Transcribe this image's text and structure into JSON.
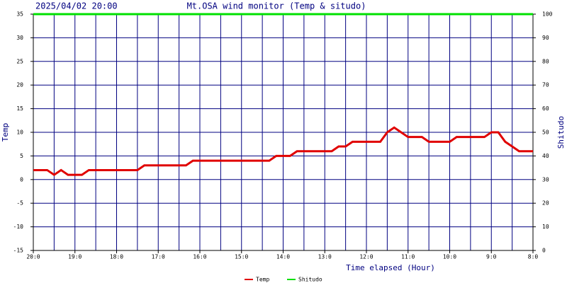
{
  "chart_data": {
    "type": "line",
    "title": "Mt.OSA wind monitor (Temp & situdo)",
    "subtitle": "2025/04/02 20:00",
    "x_label": "Time elapsed (Hour)",
    "y_label": "Temp",
    "y2_label": "Shitudo",
    "categories": [
      "20:0",
      null,
      null,
      null,
      null,
      null,
      "19:0",
      null,
      null,
      null,
      null,
      null,
      "18:0",
      null,
      null,
      null,
      null,
      null,
      "17:0",
      null,
      null,
      null,
      null,
      null,
      "16:0",
      null,
      null,
      null,
      null,
      null,
      "15:0",
      null,
      null,
      null,
      null,
      null,
      "14:0",
      null,
      null,
      null,
      null,
      null,
      "13:0",
      null,
      null,
      null,
      null,
      null,
      "12:0",
      null,
      null,
      null,
      null,
      null,
      "11:0",
      null,
      null,
      null,
      null,
      null,
      "10:0",
      null,
      null,
      null,
      null,
      null,
      "9:0",
      null,
      null,
      null,
      null,
      null,
      "8:0"
    ],
    "series": [
      {
        "name": "Temp",
        "color": "#e00000",
        "axis": "y",
        "values": [
          2,
          2,
          2,
          1,
          2,
          1,
          1,
          1,
          2,
          2,
          2,
          2,
          2,
          2,
          2,
          2,
          3,
          3,
          3,
          3,
          3,
          3,
          3,
          4,
          4,
          4,
          4,
          4,
          4,
          4,
          4,
          4,
          4,
          4,
          4,
          5,
          5,
          5,
          6,
          6,
          6,
          6,
          6,
          6,
          7,
          7,
          8,
          8,
          8,
          8,
          8,
          10,
          11,
          10,
          9,
          9,
          9,
          8,
          8,
          8,
          8,
          9,
          9,
          9,
          9,
          9,
          10,
          10,
          8,
          7,
          6,
          6,
          6
        ]
      },
      {
        "name": "Shitudo",
        "color": "#00e000",
        "axis": "y2",
        "values": [
          100,
          100,
          100,
          100,
          100,
          100,
          100,
          100,
          100,
          100,
          100,
          100,
          100,
          100,
          100,
          100,
          100,
          100,
          100,
          100,
          100,
          100,
          100,
          100,
          100,
          100,
          100,
          100,
          100,
          100,
          100,
          100,
          100,
          100,
          100,
          100,
          100,
          100,
          100,
          100,
          100,
          100,
          100,
          100,
          100,
          100,
          100,
          100,
          100,
          100,
          100,
          100,
          100,
          100,
          100,
          100,
          100,
          100,
          100,
          100,
          100,
          100,
          100,
          100,
          100,
          100,
          100,
          100,
          100,
          100,
          100,
          100,
          100
        ]
      }
    ],
    "ylim": [
      -15,
      35
    ],
    "yticks": [
      -15,
      -10,
      -5,
      0,
      5,
      10,
      15,
      20,
      25,
      30,
      35
    ],
    "y2lim": [
      0,
      100
    ],
    "y2ticks": [
      0,
      10,
      20,
      30,
      40,
      50,
      60,
      70,
      80,
      90,
      100
    ],
    "grid": true,
    "grid_color": "#000080",
    "legend": "bottom"
  }
}
